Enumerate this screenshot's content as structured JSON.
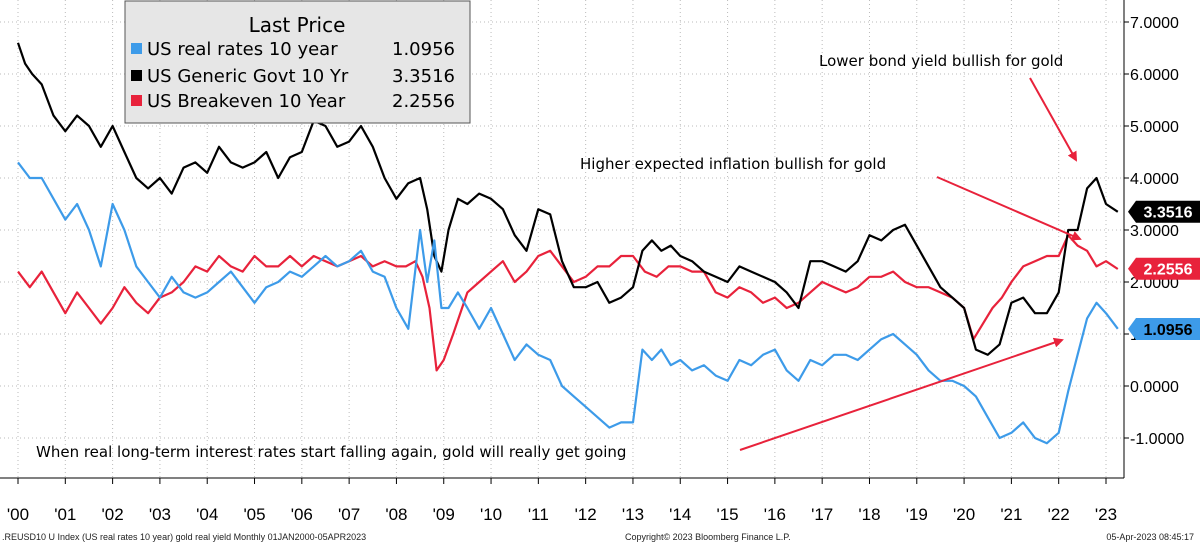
{
  "chart_data": {
    "type": "line",
    "legend_title": "Last Price",
    "legend_position": "top-left",
    "grid": true,
    "ylim": [
      -1.5,
      7.5
    ],
    "y_ticks": [
      "-1.0000",
      "0.0000",
      "1.0000",
      "2.0000",
      "3.0000",
      "4.0000",
      "5.0000",
      "6.0000",
      "7.0000"
    ],
    "y_tick_values": [
      -1,
      0,
      1,
      2,
      3,
      4,
      5,
      6,
      7
    ],
    "x_ticks": [
      "'00",
      "'01",
      "'02",
      "'03",
      "'04",
      "'05",
      "'06",
      "'07",
      "'08",
      "'09",
      "'10",
      "'11",
      "'12",
      "'13",
      "'14",
      "'15",
      "'16",
      "'17",
      "'18",
      "'19",
      "'20",
      "'21",
      "'22",
      "'23"
    ],
    "xlim": [
      2000.0,
      2023.5
    ],
    "series": [
      {
        "name": "US real rates 10 year",
        "legend_value": "1.0956",
        "last_label": "1.0956",
        "color": "#3d9be9",
        "x": [
          2000.0,
          2000.25,
          2000.5,
          2000.75,
          2001.0,
          2001.25,
          2001.5,
          2001.75,
          2002.0,
          2002.25,
          2002.5,
          2002.75,
          2003.0,
          2003.25,
          2003.5,
          2003.75,
          2004.0,
          2004.25,
          2004.5,
          2004.75,
          2005.0,
          2005.25,
          2005.5,
          2005.75,
          2006.0,
          2006.25,
          2006.5,
          2006.75,
          2007.0,
          2007.25,
          2007.5,
          2007.75,
          2008.0,
          2008.25,
          2008.5,
          2008.65,
          2008.8,
          2008.95,
          2009.1,
          2009.3,
          2009.5,
          2009.75,
          2010.0,
          2010.25,
          2010.5,
          2010.75,
          2011.0,
          2011.25,
          2011.5,
          2011.75,
          2012.0,
          2012.25,
          2012.5,
          2012.75,
          2013.0,
          2013.2,
          2013.4,
          2013.6,
          2013.8,
          2014.0,
          2014.25,
          2014.5,
          2014.75,
          2015.0,
          2015.25,
          2015.5,
          2015.75,
          2016.0,
          2016.25,
          2016.5,
          2016.75,
          2017.0,
          2017.25,
          2017.5,
          2017.75,
          2018.0,
          2018.25,
          2018.5,
          2018.75,
          2019.0,
          2019.25,
          2019.5,
          2019.75,
          2020.0,
          2020.25,
          2020.5,
          2020.75,
          2021.0,
          2021.25,
          2021.5,
          2021.75,
          2022.0,
          2022.2,
          2022.4,
          2022.6,
          2022.8,
          2023.0,
          2023.25
        ],
        "values": [
          4.3,
          4.0,
          4.0,
          3.6,
          3.2,
          3.5,
          3.0,
          2.3,
          3.5,
          3.0,
          2.3,
          2.0,
          1.7,
          2.1,
          1.8,
          1.7,
          1.8,
          2.0,
          2.2,
          1.9,
          1.6,
          1.9,
          2.0,
          2.2,
          2.1,
          2.3,
          2.5,
          2.3,
          2.4,
          2.6,
          2.2,
          2.1,
          1.5,
          1.1,
          3.0,
          2.0,
          2.8,
          1.5,
          1.5,
          1.8,
          1.5,
          1.1,
          1.5,
          1.0,
          0.5,
          0.8,
          0.6,
          0.5,
          0.0,
          -0.2,
          -0.4,
          -0.6,
          -0.8,
          -0.7,
          -0.7,
          0.7,
          0.5,
          0.7,
          0.4,
          0.5,
          0.3,
          0.4,
          0.2,
          0.1,
          0.5,
          0.4,
          0.6,
          0.7,
          0.3,
          0.1,
          0.5,
          0.4,
          0.6,
          0.6,
          0.5,
          0.7,
          0.9,
          1.0,
          0.8,
          0.6,
          0.3,
          0.1,
          0.1,
          0.0,
          -0.2,
          -0.6,
          -1.0,
          -0.9,
          -0.7,
          -1.0,
          -1.1,
          -0.9,
          -0.1,
          0.6,
          1.3,
          1.6,
          1.4,
          1.1
        ]
      },
      {
        "name": "US Generic Govt 10 Yr",
        "legend_value": "3.3516",
        "last_label": "3.3516",
        "color": "#000000",
        "x": [
          2000.0,
          2000.15,
          2000.3,
          2000.5,
          2000.75,
          2001.0,
          2001.25,
          2001.5,
          2001.75,
          2002.0,
          2002.25,
          2002.5,
          2002.75,
          2003.0,
          2003.25,
          2003.5,
          2003.75,
          2004.0,
          2004.25,
          2004.5,
          2004.75,
          2005.0,
          2005.25,
          2005.5,
          2005.75,
          2006.0,
          2006.25,
          2006.5,
          2006.75,
          2007.0,
          2007.25,
          2007.5,
          2007.75,
          2008.0,
          2008.25,
          2008.5,
          2008.65,
          2008.8,
          2008.95,
          2009.1,
          2009.3,
          2009.5,
          2009.75,
          2010.0,
          2010.25,
          2010.5,
          2010.75,
          2011.0,
          2011.25,
          2011.5,
          2011.75,
          2012.0,
          2012.25,
          2012.5,
          2012.75,
          2013.0,
          2013.2,
          2013.4,
          2013.6,
          2013.8,
          2014.0,
          2014.25,
          2014.5,
          2014.75,
          2015.0,
          2015.25,
          2015.5,
          2015.75,
          2016.0,
          2016.25,
          2016.5,
          2016.75,
          2017.0,
          2017.25,
          2017.5,
          2017.75,
          2018.0,
          2018.25,
          2018.5,
          2018.75,
          2019.0,
          2019.25,
          2019.5,
          2019.75,
          2020.0,
          2020.25,
          2020.5,
          2020.75,
          2021.0,
          2021.25,
          2021.5,
          2021.75,
          2022.0,
          2022.2,
          2022.4,
          2022.6,
          2022.8,
          2023.0,
          2023.25
        ],
        "values": [
          6.6,
          6.2,
          6.0,
          5.8,
          5.2,
          4.9,
          5.2,
          5.0,
          4.6,
          5.0,
          4.5,
          4.0,
          3.8,
          4.0,
          3.7,
          4.2,
          4.3,
          4.1,
          4.6,
          4.3,
          4.2,
          4.3,
          4.5,
          4.0,
          4.4,
          4.5,
          5.1,
          5.0,
          4.6,
          4.7,
          5.0,
          4.6,
          4.0,
          3.6,
          3.9,
          4.0,
          3.4,
          2.5,
          2.2,
          3.0,
          3.6,
          3.5,
          3.7,
          3.6,
          3.4,
          2.9,
          2.6,
          3.4,
          3.3,
          2.4,
          1.9,
          1.9,
          2.0,
          1.6,
          1.7,
          1.9,
          2.6,
          2.8,
          2.6,
          2.7,
          2.5,
          2.4,
          2.2,
          2.1,
          2.0,
          2.3,
          2.2,
          2.1,
          2.0,
          1.8,
          1.5,
          2.4,
          2.4,
          2.3,
          2.2,
          2.4,
          2.9,
          2.8,
          3.0,
          3.1,
          2.7,
          2.3,
          1.9,
          1.7,
          1.5,
          0.7,
          0.6,
          0.8,
          1.6,
          1.7,
          1.4,
          1.4,
          1.8,
          3.0,
          3.0,
          3.8,
          4.0,
          3.5,
          3.35
        ]
      },
      {
        "name": "US Breakeven 10 Year",
        "legend_value": "2.2556",
        "last_label": "2.2556",
        "color": "#e8223b",
        "x": [
          2000.0,
          2000.25,
          2000.5,
          2000.75,
          2001.0,
          2001.25,
          2001.5,
          2001.75,
          2002.0,
          2002.25,
          2002.5,
          2002.75,
          2003.0,
          2003.25,
          2003.5,
          2003.75,
          2004.0,
          2004.25,
          2004.5,
          2004.75,
          2005.0,
          2005.25,
          2005.5,
          2005.75,
          2006.0,
          2006.25,
          2006.5,
          2006.75,
          2007.0,
          2007.25,
          2007.5,
          2007.75,
          2008.0,
          2008.2,
          2008.4,
          2008.55,
          2008.7,
          2008.85,
          2009.0,
          2009.2,
          2009.5,
          2009.75,
          2010.0,
          2010.25,
          2010.5,
          2010.75,
          2011.0,
          2011.25,
          2011.5,
          2011.75,
          2012.0,
          2012.25,
          2012.5,
          2012.75,
          2013.0,
          2013.25,
          2013.5,
          2013.75,
          2014.0,
          2014.25,
          2014.5,
          2014.75,
          2015.0,
          2015.25,
          2015.5,
          2015.75,
          2016.0,
          2016.25,
          2016.5,
          2016.75,
          2017.0,
          2017.25,
          2017.5,
          2017.75,
          2018.0,
          2018.25,
          2018.5,
          2018.75,
          2019.0,
          2019.25,
          2019.5,
          2019.75,
          2020.0,
          2020.2,
          2020.4,
          2020.6,
          2020.8,
          2021.0,
          2021.25,
          2021.5,
          2021.75,
          2022.0,
          2022.2,
          2022.4,
          2022.6,
          2022.8,
          2023.0,
          2023.25
        ],
        "values": [
          2.2,
          1.9,
          2.2,
          1.8,
          1.4,
          1.8,
          1.5,
          1.2,
          1.5,
          1.9,
          1.6,
          1.4,
          1.7,
          1.8,
          2.0,
          2.3,
          2.2,
          2.5,
          2.3,
          2.2,
          2.5,
          2.3,
          2.3,
          2.5,
          2.3,
          2.5,
          2.4,
          2.3,
          2.4,
          2.5,
          2.3,
          2.4,
          2.3,
          2.3,
          2.4,
          2.1,
          1.5,
          0.3,
          0.5,
          1.0,
          1.8,
          2.0,
          2.2,
          2.4,
          2.0,
          2.2,
          2.5,
          2.6,
          2.3,
          2.0,
          2.1,
          2.3,
          2.3,
          2.5,
          2.5,
          2.2,
          2.1,
          2.3,
          2.3,
          2.2,
          2.2,
          1.8,
          1.7,
          1.9,
          1.8,
          1.6,
          1.7,
          1.5,
          1.6,
          1.8,
          2.0,
          1.9,
          1.8,
          1.9,
          2.1,
          2.1,
          2.2,
          2.0,
          1.9,
          1.9,
          1.8,
          1.7,
          1.5,
          0.9,
          1.2,
          1.5,
          1.7,
          2.0,
          2.3,
          2.4,
          2.5,
          2.5,
          2.9,
          2.7,
          2.6,
          2.3,
          2.4,
          2.25
        ]
      }
    ],
    "annotations": [
      {
        "text": "Lower bond yield bullish for gold"
      },
      {
        "text": "Higher expected inflation bullish for gold"
      },
      {
        "text": "When real long-term interest rates start falling again, gold will really get going"
      }
    ]
  },
  "footer": {
    "left": ".REUSD10 U Index (US real rates 10 year) gold real yield  Monthly 01JAN2000-05APR2023",
    "center": "Copyright© 2023 Bloomberg Finance L.P.",
    "right": "05-Apr-2023 08:45:17"
  }
}
